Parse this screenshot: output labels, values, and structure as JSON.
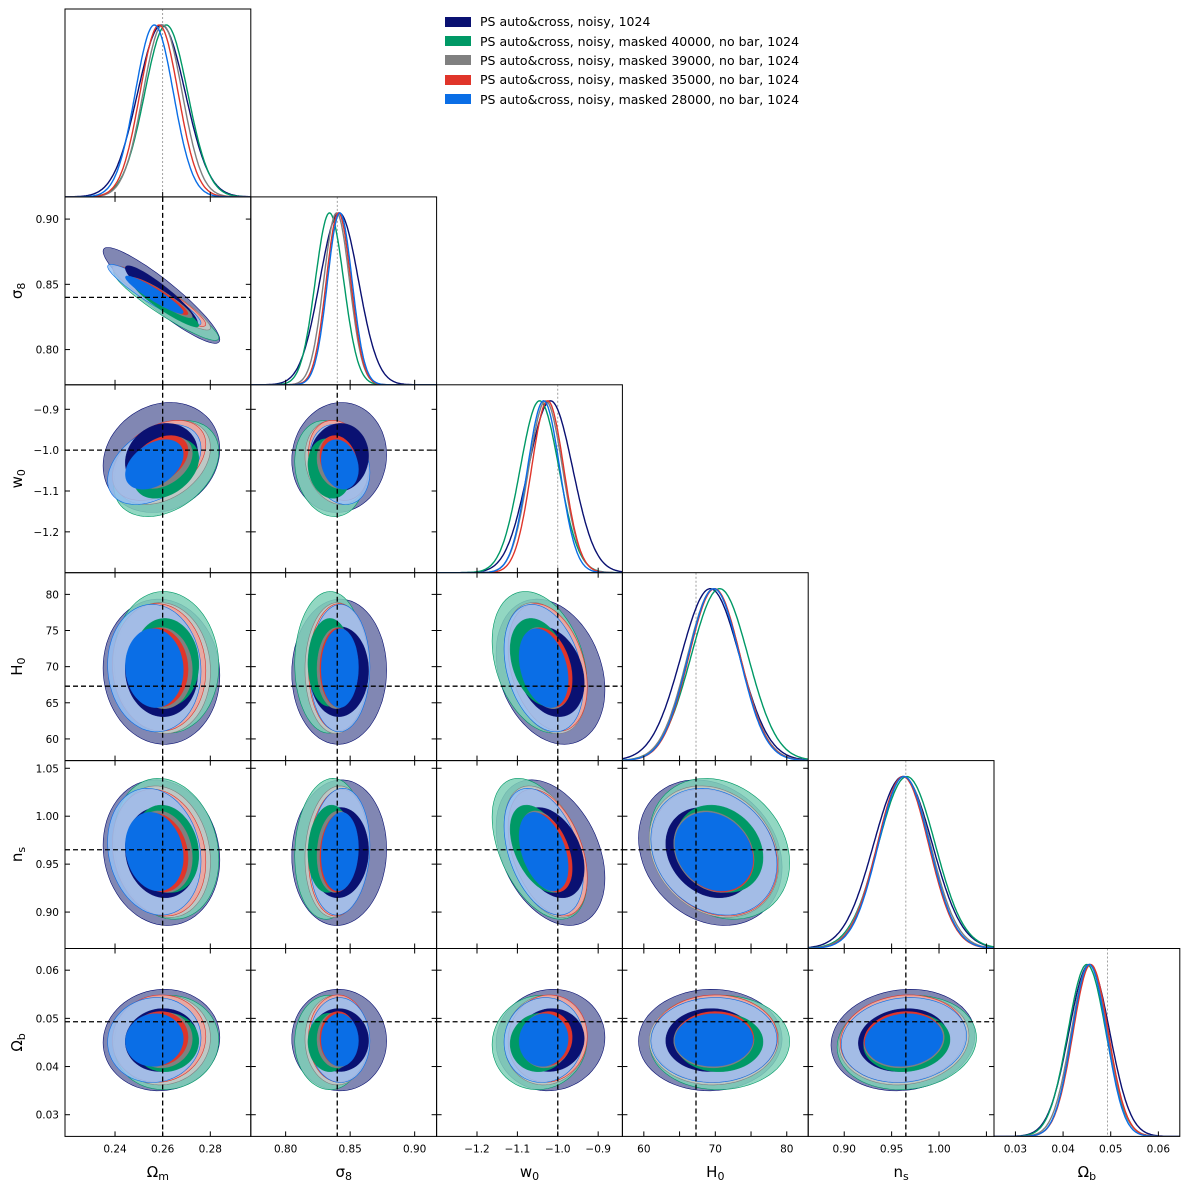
{
  "legend": [
    {
      "label": "PS auto&cross, noisy, 1024",
      "color": "#0a1172"
    },
    {
      "label": "PS auto&cross, noisy, masked 40000, no bar, 1024",
      "color": "#009966"
    },
    {
      "label": "PS auto&cross, noisy, masked 39000, no bar, 1024",
      "color": "#808080"
    },
    {
      "label": "PS auto&cross, noisy, masked 35000, no bar, 1024",
      "color": "#e0352a"
    },
    {
      "label": "PS auto&cross, noisy, masked 28000, no bar, 1024",
      "color": "#0a6ee6"
    }
  ],
  "chart_data": {
    "type": "corner",
    "params": [
      {
        "name": "Omega_m",
        "label_base": "Ω",
        "label_sub": "m",
        "truth": 0.26,
        "range": [
          0.219,
          0.297
        ],
        "ticks": [
          0.24,
          0.26,
          0.28
        ],
        "tick_labels": [
          "0.24",
          "0.26",
          "0.28"
        ]
      },
      {
        "name": "sigma_8",
        "label_base": "σ",
        "label_sub": "8",
        "truth": 0.84,
        "range": [
          0.773,
          0.917
        ],
        "ticks": [
          0.8,
          0.85,
          0.9
        ],
        "tick_labels": [
          "0.80",
          "0.85",
          "0.90"
        ]
      },
      {
        "name": "w_0",
        "label_base": "w",
        "label_sub": "0",
        "truth": -1.0,
        "range": [
          -1.3,
          -0.84
        ],
        "ticks": [
          -1.2,
          -1.1,
          -1.0,
          -0.9
        ],
        "tick_labels": [
          "−1.2",
          "−1.1",
          "−1.0",
          "−0.9"
        ]
      },
      {
        "name": "H_0",
        "label_base": "H",
        "label_sub": "0",
        "truth": 67.3,
        "range": [
          57.0,
          83.0
        ],
        "ticks": [
          60,
          65,
          70,
          75,
          80
        ],
        "tick_labels": [
          "60",
          "65",
          "70",
          "75",
          "80"
        ]
      },
      {
        "name": "n_s",
        "label_base": "n",
        "label_sub": "s",
        "truth": 0.965,
        "range": [
          0.862,
          1.058
        ],
        "ticks": [
          0.9,
          0.95,
          1.0,
          1.05
        ],
        "tick_labels": [
          "0.90",
          "0.95",
          "1.00",
          "1.05"
        ]
      },
      {
        "name": "Omega_b",
        "label_base": "Ω",
        "label_sub": "b",
        "truth": 0.0493,
        "range": [
          0.0255,
          0.0645
        ],
        "ticks": [
          0.03,
          0.04,
          0.05,
          0.06
        ],
        "tick_labels": [
          "0.03",
          "0.04",
          "0.05",
          "0.06"
        ]
      }
    ],
    "x_tick_labels": {
      "Omega_m": [
        "0.24",
        "0.26",
        "0.28"
      ],
      "sigma_8": [
        "0.80",
        "0.85",
        "0.90"
      ],
      "w_0": [
        "−1.2",
        "−1.1",
        "−1.0",
        "−0.9"
      ],
      "H_0": [
        "60",
        "70",
        "80"
      ],
      "n_s": [
        "0.90",
        "0.95",
        "1.00"
      ],
      "Omega_b": [
        "0.03",
        "0.04",
        "0.05",
        "0.06"
      ]
    },
    "series": [
      {
        "name": "PS auto&cross, noisy, 1024",
        "color": "#0a1172",
        "fill1": "#6b72a6",
        "fill2": "#0a1172",
        "mean": [
          0.2595,
          0.8415,
          -1.018,
          69.3,
          0.962,
          0.0455
        ],
        "sigma": [
          0.01,
          0.015,
          0.055,
          4.1,
          0.031,
          0.0043
        ],
        "corr": [
          [
            1,
            -0.92,
            0.15,
            -0.05,
            -0.1,
            0.05
          ],
          [
            -0.92,
            1,
            0.05,
            0.02,
            0.05,
            -0.02
          ],
          [
            0.15,
            0.05,
            1,
            -0.25,
            -0.35,
            0.05
          ],
          [
            -0.05,
            0.02,
            -0.25,
            1,
            -0.2,
            0.02
          ],
          [
            -0.1,
            0.05,
            -0.35,
            -0.2,
            1,
            0.1
          ],
          [
            0.05,
            -0.02,
            0.05,
            0.02,
            0.1,
            1
          ]
        ]
      },
      {
        "name": "PS auto&cross, noisy, masked 40000, no bar, 1024",
        "color": "#009966",
        "fill1": "#7fd0b7",
        "fill2": "#009966",
        "mean": [
          0.2615,
          0.834,
          -1.045,
          70.6,
          0.966,
          0.045
        ],
        "sigma": [
          0.009,
          0.011,
          0.048,
          4.0,
          0.03,
          0.004
        ],
        "corr": [
          [
            1,
            -0.93,
            0.35,
            -0.05,
            -0.15,
            0.05
          ],
          [
            -0.93,
            1,
            -0.15,
            0.02,
            0.1,
            -0.02
          ],
          [
            0.35,
            -0.15,
            1,
            -0.3,
            -0.45,
            0.05
          ],
          [
            -0.05,
            0.02,
            -0.3,
            1,
            -0.2,
            0.02
          ],
          [
            -0.15,
            0.1,
            -0.45,
            -0.2,
            1,
            0.1
          ],
          [
            0.05,
            -0.02,
            0.05,
            0.02,
            0.1,
            1
          ]
        ]
      },
      {
        "name": "PS auto&cross, noisy, masked 39000, no bar, 1024",
        "color": "#808080",
        "fill1": "#c8c8c8",
        "fill2": "#808080",
        "mean": [
          0.26,
          0.8395,
          -1.03,
          69.8,
          0.963,
          0.0455
        ],
        "sigma": [
          0.0082,
          0.01,
          0.042,
          3.7,
          0.028,
          0.0038
        ],
        "corr": [
          [
            1,
            -0.93,
            0.35,
            -0.05,
            -0.15,
            0.05
          ],
          [
            -0.93,
            1,
            -0.15,
            0.02,
            0.1,
            -0.02
          ],
          [
            0.35,
            -0.15,
            1,
            -0.3,
            -0.4,
            0.05
          ],
          [
            -0.05,
            0.02,
            -0.3,
            1,
            -0.2,
            0.02
          ],
          [
            -0.15,
            0.1,
            -0.4,
            -0.2,
            1,
            0.1
          ],
          [
            0.05,
            -0.02,
            0.05,
            0.02,
            0.1,
            1
          ]
        ]
      },
      {
        "name": "PS auto&cross, noisy, masked 35000, no bar, 1024",
        "color": "#e0352a",
        "fill1": "#f1a29b",
        "fill2": "#e0352a",
        "mean": [
          0.2585,
          0.841,
          -1.025,
          69.9,
          0.962,
          0.0458
        ],
        "sigma": [
          0.008,
          0.0095,
          0.04,
          3.6,
          0.027,
          0.0037
        ],
        "corr": [
          [
            1,
            -0.93,
            0.4,
            -0.05,
            -0.15,
            0.05
          ],
          [
            -0.93,
            1,
            -0.2,
            0.02,
            0.1,
            -0.02
          ],
          [
            0.4,
            -0.2,
            1,
            -0.3,
            -0.4,
            0.05
          ],
          [
            -0.05,
            0.02,
            -0.3,
            1,
            -0.2,
            0.02
          ],
          [
            -0.15,
            0.1,
            -0.4,
            -0.2,
            1,
            0.1
          ],
          [
            0.05,
            -0.02,
            0.05,
            0.02,
            0.1,
            1
          ]
        ]
      },
      {
        "name": "PS auto&cross, noisy, masked 28000, no bar, 1024",
        "color": "#0a6ee6",
        "fill1": "#97bff2",
        "fill2": "#0a6ee6",
        "mean": [
          0.2565,
          0.842,
          -1.035,
          69.8,
          0.963,
          0.0455
        ],
        "sigma": [
          0.008,
          0.0095,
          0.04,
          3.6,
          0.027,
          0.0036
        ],
        "corr": [
          [
            1,
            -0.93,
            0.4,
            -0.05,
            -0.15,
            0.05
          ],
          [
            -0.93,
            1,
            -0.2,
            0.02,
            0.1,
            -0.02
          ],
          [
            0.4,
            -0.2,
            1,
            -0.3,
            -0.4,
            0.05
          ],
          [
            -0.05,
            0.02,
            -0.3,
            1,
            -0.2,
            0.02
          ],
          [
            -0.15,
            0.1,
            -0.4,
            -0.2,
            1,
            0.1
          ],
          [
            0.05,
            -0.02,
            0.05,
            0.02,
            0.1,
            1
          ]
        ]
      }
    ],
    "contour_levels": [
      "68%",
      "95%"
    ],
    "truth_line_style": "dashed black"
  }
}
